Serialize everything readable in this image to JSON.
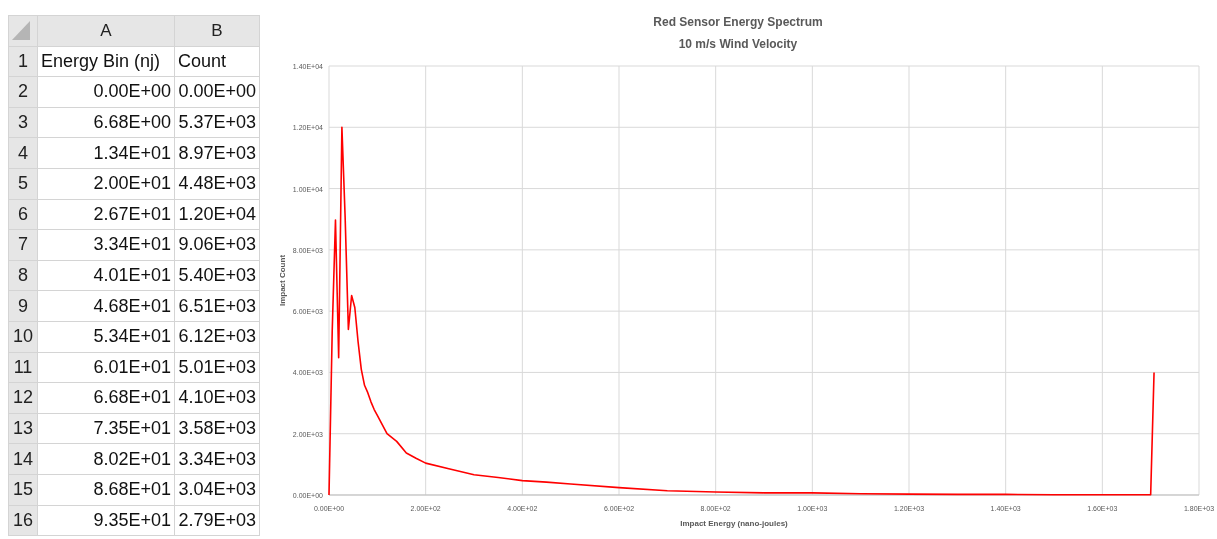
{
  "chart_data": [
    {
      "type": "heatmap",
      "categories": [
        "A",
        "B"
      ],
      "y_categories": [
        "1",
        "2",
        "3",
        "4",
        "5",
        "6",
        "7",
        "8",
        "9",
        "10",
        "11",
        "12",
        "13",
        "14",
        "15",
        "16"
      ],
      "cells": [
        [
          null,
          null
        ],
        [
          null,
          null
        ],
        [
          null,
          null
        ],
        [
          null,
          null
        ],
        [
          null,
          null
        ],
        [
          null,
          null
        ],
        [
          null,
          null
        ],
        [
          null,
          null
        ],
        [
          null,
          null
        ],
        [
          null,
          null
        ],
        [
          null,
          null
        ],
        [
          null,
          null
        ],
        [
          null,
          null
        ],
        [
          null,
          null
        ],
        [
          null,
          null
        ],
        [
          null,
          null
        ]
      ],
      "cell_labels": [
        [
          "Energy Bin (nj)",
          "Count"
        ],
        [
          "0.00E+00",
          "0.00E+00"
        ],
        [
          "6.68E+00",
          "5.37E+03"
        ],
        [
          "1.34E+01",
          "8.97E+03"
        ],
        [
          "2.00E+01",
          "4.48E+03"
        ],
        [
          "2.67E+01",
          "1.20E+04"
        ],
        [
          "3.34E+01",
          "9.06E+03"
        ],
        [
          "4.01E+01",
          "5.40E+03"
        ],
        [
          "4.68E+01",
          "6.51E+03"
        ],
        [
          "5.34E+01",
          "6.12E+03"
        ],
        [
          "6.01E+01",
          "5.01E+03"
        ],
        [
          "6.68E+01",
          "4.10E+03"
        ],
        [
          "7.35E+01",
          "3.58E+03"
        ],
        [
          "8.02E+01",
          "3.34E+03"
        ],
        [
          "8.68E+01",
          "3.04E+03"
        ],
        [
          "9.35E+01",
          "2.79E+03"
        ]
      ]
    },
    {
      "type": "line",
      "title": "Red Sensor Energy Spectrum",
      "subtitle": "10 m/s Wind Velocity",
      "xlabel": "Impact Energy (nano-joules)",
      "ylabel": "Impact Count",
      "grid": true,
      "xlim": [
        0,
        1800
      ],
      "ylim": [
        0,
        14000
      ],
      "xticks": [
        {
          "value": 0,
          "label": "0.00E+00"
        },
        {
          "value": 200,
          "label": "2.00E+02"
        },
        {
          "value": 400,
          "label": "4.00E+02"
        },
        {
          "value": 600,
          "label": "6.00E+02"
        },
        {
          "value": 800,
          "label": "8.00E+02"
        },
        {
          "value": 1000,
          "label": "1.00E+03"
        },
        {
          "value": 1200,
          "label": "1.20E+03"
        },
        {
          "value": 1400,
          "label": "1.40E+03"
        },
        {
          "value": 1600,
          "label": "1.60E+03"
        },
        {
          "value": 1800,
          "label": "1.80E+03"
        }
      ],
      "yticks": [
        {
          "value": 0,
          "label": "0.00E+00"
        },
        {
          "value": 2000,
          "label": "2.00E+03"
        },
        {
          "value": 4000,
          "label": "4.00E+03"
        },
        {
          "value": 6000,
          "label": "6.00E+03"
        },
        {
          "value": 8000,
          "label": "8.00E+03"
        },
        {
          "value": 10000,
          "label": "1.00E+04"
        },
        {
          "value": 12000,
          "label": "1.20E+04"
        },
        {
          "value": 14000,
          "label": "1.40E+04"
        }
      ],
      "series": [
        {
          "color": "#ff0000",
          "x": [
            0,
            6.68,
            13.4,
            20,
            26.7,
            33.4,
            40.1,
            46.8,
            53.4,
            60.1,
            66.8,
            73.5,
            80.2,
            86.8,
            93.5,
            100,
            120,
            140,
            160,
            180,
            200,
            250,
            300,
            350,
            400,
            450,
            500,
            600,
            700,
            800,
            900,
            1000,
            1100,
            1200,
            1300,
            1400,
            1500,
            1600,
            1700,
            1707
          ],
          "values": [
            0,
            5370,
            8970,
            4480,
            12000,
            9060,
            5400,
            6510,
            6120,
            5010,
            4100,
            3580,
            3340,
            3040,
            2790,
            2600,
            2000,
            1750,
            1370,
            1200,
            1040,
            850,
            660,
            570,
            470,
            420,
            360,
            240,
            140,
            100,
            70,
            70,
            40,
            30,
            20,
            20,
            10,
            10,
            10,
            4000
          ]
        }
      ]
    }
  ]
}
